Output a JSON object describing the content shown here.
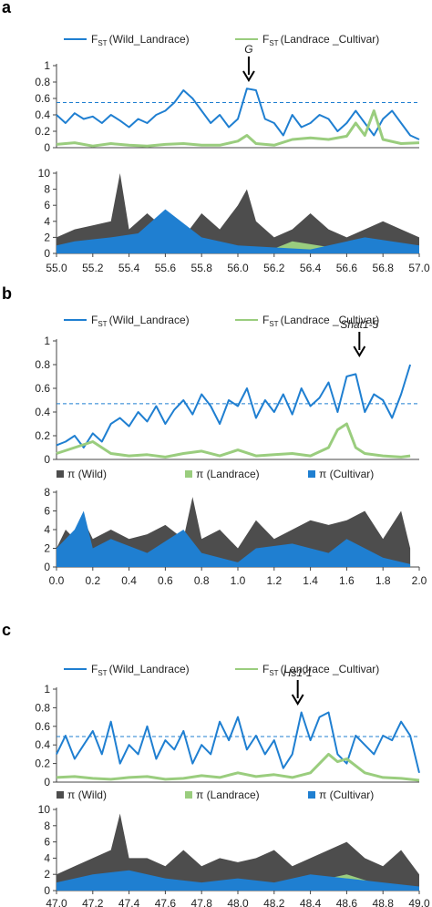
{
  "panels": [
    {
      "letter": "a",
      "fst_legend": {
        "wild_landrace": {
          "main": "F",
          "sub": "ST",
          "rest": "(Wild_Landrace)"
        },
        "landrace_cultivar": {
          "main": "F",
          "sub": "ST",
          "rest": "(Landrace _Cultivar)"
        }
      },
      "pi_legend": null,
      "gene": {
        "label": "G",
        "italic": true,
        "x": 56.06
      },
      "x_ticks": [
        "55.0",
        "55.2",
        "55.4",
        "55.6",
        "55.8",
        "56.0",
        "56.2",
        "56.4",
        "56.6",
        "56.8",
        "57.0"
      ],
      "x_range": [
        55.0,
        57.0
      ],
      "fst_y_ticks": [
        "0",
        "0.2",
        "0.4",
        "0.6",
        "0.8",
        "1"
      ],
      "pi_y_ticks": [
        "0",
        "2",
        "4",
        "6",
        "8",
        "10"
      ],
      "threshold": 0.55,
      "pi_max": 10
    },
    {
      "letter": "b",
      "fst_legend": {
        "wild_landrace": {
          "main": "F",
          "sub": "ST",
          "rest": "(Wild_Landrace)"
        },
        "landrace_cultivar": {
          "main": "F",
          "sub": "ST",
          "rest": "(Landrace _Cultivar)"
        }
      },
      "pi_legend": {
        "wild": "π  (Wild)",
        "landrace": "π  (Landrace)",
        "cultivar": "π  (Cultivar)"
      },
      "gene": {
        "label": "Shat1-5",
        "italic": true,
        "x": 1.67
      },
      "x_ticks": [
        "0.0",
        "0.2",
        "0.4",
        "0.6",
        "0.8",
        "1.0",
        "1.2",
        "1.4",
        "1.6",
        "1.8",
        "2.0"
      ],
      "x_range": [
        0.0,
        2.0
      ],
      "fst_y_ticks": [
        "0",
        "0.2",
        "0.4",
        "0.6",
        "0.8",
        "1"
      ],
      "pi_y_ticks": [
        "0",
        "2",
        "4",
        "6",
        "8"
      ],
      "threshold": 0.47,
      "pi_max": 8
    },
    {
      "letter": "c",
      "fst_legend": {
        "wild_landrace": {
          "main": "F",
          "sub": "ST",
          "rest": "(Wild_Landrace)"
        },
        "landrace_cultivar": {
          "main": "F",
          "sub": "ST",
          "rest": "(Landrace _Cultivar)"
        }
      },
      "pi_legend": {
        "wild": "π  (Wild)",
        "landrace": "π  (Landrace)",
        "cultivar": "π  (Cultivar)"
      },
      "gene": {
        "label": "Hs1-1",
        "italic": true,
        "x": 48.33
      },
      "x_ticks": [
        "47.0",
        "47.2",
        "47.4",
        "47.6",
        "47.8",
        "48.0",
        "48.2",
        "48.4",
        "48.6",
        "48.8",
        "49.0"
      ],
      "x_range": [
        47.0,
        49.0
      ],
      "fst_y_ticks": [
        "0",
        "0.2",
        "0.4",
        "0.6",
        "0.8",
        "1"
      ],
      "pi_y_ticks": [
        "0",
        "2",
        "4",
        "6",
        "8",
        "10"
      ],
      "threshold": 0.49,
      "pi_max": 10
    }
  ],
  "colors": {
    "wild_landrace": "#1f7fd1",
    "landrace_cultivar": "#9acd7e",
    "pi_wild": "#4d4d4d",
    "pi_landrace": "#9acd7e",
    "pi_cultivar": "#1f7fd1"
  },
  "chart_data": [
    {
      "type": "line",
      "panel": "a",
      "x_range": [
        55.0,
        57.0
      ],
      "ylim": [
        0,
        1
      ],
      "threshold": 0.55,
      "series": [
        {
          "name": "FST (Wild_Landrace)",
          "x": [
            55.0,
            55.05,
            55.1,
            55.15,
            55.2,
            55.25,
            55.3,
            55.35,
            55.4,
            55.45,
            55.5,
            55.55,
            55.6,
            55.65,
            55.7,
            55.75,
            55.8,
            55.85,
            55.9,
            55.95,
            56.0,
            56.05,
            56.1,
            56.15,
            56.2,
            56.25,
            56.3,
            56.35,
            56.4,
            56.45,
            56.5,
            56.55,
            56.6,
            56.65,
            56.7,
            56.75,
            56.8,
            56.85,
            56.9,
            56.95,
            57.0
          ],
          "values": [
            0.4,
            0.3,
            0.42,
            0.35,
            0.38,
            0.3,
            0.4,
            0.33,
            0.25,
            0.35,
            0.3,
            0.4,
            0.45,
            0.55,
            0.7,
            0.6,
            0.45,
            0.3,
            0.4,
            0.25,
            0.35,
            0.72,
            0.7,
            0.35,
            0.3,
            0.15,
            0.4,
            0.25,
            0.3,
            0.4,
            0.35,
            0.2,
            0.3,
            0.45,
            0.3,
            0.15,
            0.35,
            0.45,
            0.3,
            0.15,
            0.1
          ]
        },
        {
          "name": "FST (Landrace _Cultivar)",
          "x": [
            55.0,
            55.1,
            55.2,
            55.3,
            55.4,
            55.5,
            55.6,
            55.7,
            55.8,
            55.9,
            56.0,
            56.05,
            56.1,
            56.2,
            56.3,
            56.4,
            56.5,
            56.6,
            56.65,
            56.7,
            56.75,
            56.8,
            56.9,
            57.0
          ],
          "values": [
            0.04,
            0.06,
            0.02,
            0.05,
            0.03,
            0.02,
            0.04,
            0.05,
            0.03,
            0.03,
            0.08,
            0.15,
            0.05,
            0.03,
            0.1,
            0.12,
            0.1,
            0.14,
            0.3,
            0.15,
            0.45,
            0.1,
            0.05,
            0.06
          ]
        }
      ]
    },
    {
      "type": "area",
      "panel": "a",
      "x_range": [
        55.0,
        57.0
      ],
      "ylim": [
        0,
        10
      ],
      "series": [
        {
          "name": "π (Wild)",
          "x": [
            55.0,
            55.1,
            55.2,
            55.3,
            55.35,
            55.4,
            55.5,
            55.6,
            55.7,
            55.8,
            55.9,
            56.0,
            56.05,
            56.1,
            56.2,
            56.3,
            56.4,
            56.5,
            56.6,
            56.7,
            56.8,
            56.9,
            57.0
          ],
          "values": [
            2,
            3,
            3.5,
            4,
            10,
            3,
            5,
            3,
            2,
            5,
            3,
            6,
            8,
            4,
            2,
            3,
            5,
            3,
            2,
            3,
            4,
            3,
            2
          ]
        },
        {
          "name": "π (Landrace)",
          "x": [
            55.0,
            55.3,
            55.6,
            55.9,
            56.2,
            56.3,
            56.5,
            56.7,
            57.0
          ],
          "values": [
            0.3,
            0.5,
            0.8,
            0.5,
            0.6,
            1.5,
            0.8,
            1.2,
            0.5
          ]
        },
        {
          "name": "π (Cultivar)",
          "x": [
            55.0,
            55.1,
            55.3,
            55.45,
            55.6,
            55.8,
            56.0,
            56.4,
            56.7,
            57.0
          ],
          "values": [
            1,
            1.5,
            2,
            2.5,
            5.5,
            2,
            1,
            0.5,
            2,
            1
          ]
        }
      ]
    },
    {
      "type": "line",
      "panel": "b",
      "x_range": [
        0.0,
        2.0
      ],
      "ylim": [
        0,
        1
      ],
      "threshold": 0.47,
      "series": [
        {
          "name": "FST (Wild_Landrace)",
          "x": [
            0.0,
            0.05,
            0.1,
            0.15,
            0.2,
            0.25,
            0.3,
            0.35,
            0.4,
            0.45,
            0.5,
            0.55,
            0.6,
            0.65,
            0.7,
            0.75,
            0.8,
            0.85,
            0.9,
            0.95,
            1.0,
            1.05,
            1.1,
            1.15,
            1.2,
            1.25,
            1.3,
            1.35,
            1.4,
            1.45,
            1.5,
            1.55,
            1.6,
            1.65,
            1.7,
            1.75,
            1.8,
            1.85,
            1.9,
            1.95
          ],
          "values": [
            0.12,
            0.15,
            0.2,
            0.1,
            0.22,
            0.15,
            0.3,
            0.35,
            0.28,
            0.4,
            0.32,
            0.45,
            0.3,
            0.42,
            0.5,
            0.38,
            0.55,
            0.45,
            0.3,
            0.5,
            0.45,
            0.6,
            0.35,
            0.5,
            0.4,
            0.55,
            0.38,
            0.6,
            0.45,
            0.52,
            0.65,
            0.4,
            0.7,
            0.72,
            0.4,
            0.55,
            0.5,
            0.35,
            0.55,
            0.8
          ]
        },
        {
          "name": "FST (Landrace _Cultivar)",
          "x": [
            0.0,
            0.1,
            0.2,
            0.3,
            0.4,
            0.5,
            0.6,
            0.7,
            0.8,
            0.9,
            1.0,
            1.1,
            1.2,
            1.3,
            1.4,
            1.5,
            1.55,
            1.6,
            1.65,
            1.7,
            1.8,
            1.9,
            1.95
          ],
          "values": [
            0.05,
            0.1,
            0.15,
            0.05,
            0.03,
            0.04,
            0.02,
            0.05,
            0.07,
            0.03,
            0.08,
            0.03,
            0.04,
            0.05,
            0.03,
            0.1,
            0.25,
            0.3,
            0.1,
            0.05,
            0.03,
            0.02,
            0.03
          ]
        }
      ]
    },
    {
      "type": "area",
      "panel": "b",
      "x_range": [
        0.0,
        2.0
      ],
      "ylim": [
        0,
        8
      ],
      "series": [
        {
          "name": "π (Wild)",
          "x": [
            0.0,
            0.05,
            0.1,
            0.15,
            0.2,
            0.3,
            0.4,
            0.5,
            0.6,
            0.7,
            0.75,
            0.8,
            0.9,
            1.0,
            1.1,
            1.2,
            1.3,
            1.4,
            1.5,
            1.6,
            1.7,
            1.8,
            1.9,
            1.95
          ],
          "values": [
            2,
            4,
            3,
            5,
            3,
            4,
            3,
            3.5,
            4.5,
            3,
            7.5,
            3,
            4,
            2,
            5,
            3,
            4,
            5,
            4.5,
            5,
            6,
            3,
            6,
            2
          ]
        },
        {
          "name": "π (Landrace)",
          "x": [
            0.0,
            0.3,
            0.6,
            0.9,
            1.0,
            1.2,
            1.5,
            1.6,
            1.8,
            1.95
          ],
          "values": [
            0.5,
            0.3,
            0.8,
            0.4,
            0.5,
            0.3,
            0.5,
            1.5,
            0.3,
            0.2
          ]
        },
        {
          "name": "π (Cultivar)",
          "x": [
            0.0,
            0.05,
            0.1,
            0.15,
            0.2,
            0.3,
            0.5,
            0.7,
            0.8,
            1.0,
            1.1,
            1.3,
            1.5,
            1.6,
            1.7,
            1.8,
            1.95
          ],
          "values": [
            2,
            3,
            4,
            6,
            2,
            3,
            1.5,
            4,
            1.5,
            0.5,
            2,
            2.5,
            1.5,
            3,
            2,
            1,
            0.3
          ]
        }
      ]
    },
    {
      "type": "line",
      "panel": "c",
      "x_range": [
        47.0,
        49.0
      ],
      "ylim": [
        0,
        1
      ],
      "threshold": 0.49,
      "series": [
        {
          "name": "FST (Wild_Landrace)",
          "x": [
            47.0,
            47.05,
            47.1,
            47.15,
            47.2,
            47.25,
            47.3,
            47.35,
            47.4,
            47.45,
            47.5,
            47.55,
            47.6,
            47.65,
            47.7,
            47.75,
            47.8,
            47.85,
            47.9,
            47.95,
            48.0,
            48.05,
            48.1,
            48.15,
            48.2,
            48.25,
            48.3,
            48.35,
            48.4,
            48.45,
            48.5,
            48.55,
            48.6,
            48.65,
            48.7,
            48.75,
            48.8,
            48.85,
            48.9,
            48.95,
            49.0
          ],
          "values": [
            0.3,
            0.5,
            0.25,
            0.4,
            0.55,
            0.3,
            0.65,
            0.2,
            0.4,
            0.3,
            0.6,
            0.25,
            0.45,
            0.35,
            0.55,
            0.2,
            0.4,
            0.3,
            0.65,
            0.45,
            0.7,
            0.35,
            0.5,
            0.3,
            0.45,
            0.15,
            0.3,
            0.75,
            0.45,
            0.7,
            0.75,
            0.3,
            0.2,
            0.5,
            0.4,
            0.3,
            0.5,
            0.45,
            0.65,
            0.5,
            0.1
          ]
        },
        {
          "name": "FST (Landrace _Cultivar)",
          "x": [
            47.0,
            47.1,
            47.2,
            47.3,
            47.4,
            47.5,
            47.6,
            47.7,
            47.8,
            47.9,
            48.0,
            48.1,
            48.2,
            48.3,
            48.4,
            48.5,
            48.55,
            48.6,
            48.7,
            48.8,
            48.9,
            49.0
          ],
          "values": [
            0.05,
            0.06,
            0.04,
            0.03,
            0.05,
            0.06,
            0.03,
            0.04,
            0.07,
            0.05,
            0.1,
            0.06,
            0.08,
            0.05,
            0.1,
            0.3,
            0.22,
            0.25,
            0.1,
            0.05,
            0.04,
            0.02
          ]
        }
      ]
    },
    {
      "type": "area",
      "panel": "c",
      "x_range": [
        47.0,
        49.0
      ],
      "ylim": [
        0,
        10
      ],
      "series": [
        {
          "name": "π (Wild)",
          "x": [
            47.0,
            47.1,
            47.2,
            47.3,
            47.35,
            47.4,
            47.5,
            47.6,
            47.7,
            47.8,
            47.9,
            48.0,
            48.1,
            48.2,
            48.3,
            48.4,
            48.5,
            48.6,
            48.7,
            48.8,
            48.9,
            49.0
          ],
          "values": [
            2,
            3,
            4,
            5,
            9.5,
            4,
            4,
            3,
            5,
            3,
            4,
            3.5,
            4,
            5,
            3,
            4,
            5,
            6,
            4,
            3,
            5,
            2
          ]
        },
        {
          "name": "π (Landrace)",
          "x": [
            47.0,
            47.3,
            47.6,
            47.9,
            48.2,
            48.5,
            48.6,
            48.8,
            49.0
          ],
          "values": [
            0.5,
            0.5,
            0.8,
            0.6,
            0.5,
            1.5,
            2,
            0.6,
            0.4
          ]
        },
        {
          "name": "π (Cultivar)",
          "x": [
            47.0,
            47.2,
            47.4,
            47.6,
            47.8,
            48.0,
            48.2,
            48.4,
            48.6,
            48.8,
            49.0
          ],
          "values": [
            1,
            2,
            2.5,
            1.5,
            1,
            1.5,
            1,
            2,
            1.5,
            1,
            0.5
          ]
        }
      ]
    }
  ]
}
